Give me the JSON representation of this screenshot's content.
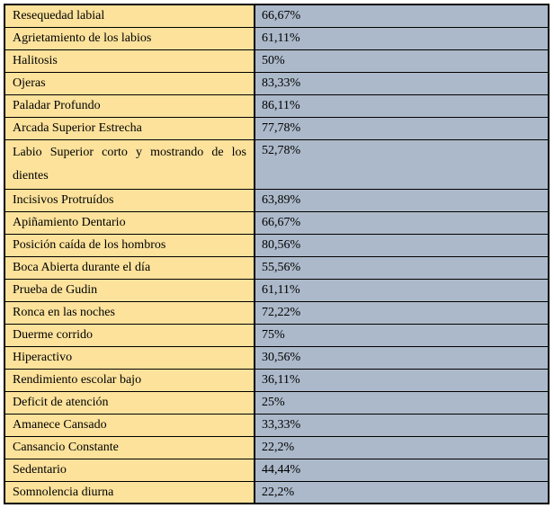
{
  "table": {
    "rows": [
      {
        "label": "Resequedad labial",
        "value": "66,67%"
      },
      {
        "label": "Agrietamiento de los labios",
        "value": "61,11%"
      },
      {
        "label": "Halitosis",
        "value": "50%"
      },
      {
        "label": "Ojeras",
        "value": "83,33%"
      },
      {
        "label": "Paladar Profundo",
        "value": "86,11%"
      },
      {
        "label": "Arcada Superior Estrecha",
        "value": "77,78%"
      },
      {
        "label": "Labio Superior corto y mostrando de los dientes",
        "value": "52,78%"
      },
      {
        "label": "Incisivos Protruídos",
        "value": "63,89%"
      },
      {
        "label": "Apiñamiento Dentario",
        "value": "66,67%"
      },
      {
        "label": "Posición caída de los hombros",
        "value": "80,56%"
      },
      {
        "label": "Boca Abierta durante el día",
        "value": "55,56%"
      },
      {
        "label": "Prueba de Gudin",
        "value": "61,11%"
      },
      {
        "label": "Ronca en las noches",
        "value": "72,22%"
      },
      {
        "label": "Duerme corrido",
        "value": "75%"
      },
      {
        "label": "Hiperactivo",
        "value": "30,56%"
      },
      {
        "label": "Rendimiento escolar bajo",
        "value": "36,11%"
      },
      {
        "label": "Deficit de atención",
        "value": "25%"
      },
      {
        "label": "Amanece Cansado",
        "value": "33,33%"
      },
      {
        "label": "Cansancio Constante",
        "value": "22,2%"
      },
      {
        "label": "Sedentario",
        "value": "44,44%"
      },
      {
        "label": "Somnolencia diurna",
        "value": "22,2%"
      }
    ]
  },
  "chart_data": {
    "type": "table",
    "categories": [
      "Resequedad labial",
      "Agrietamiento de los labios",
      "Halitosis",
      "Ojeras",
      "Paladar Profundo",
      "Arcada Superior Estrecha",
      "Labio Superior corto y mostrando de los dientes",
      "Incisivos Protruídos",
      "Apiñamiento Dentario",
      "Posición caída de los hombros",
      "Boca Abierta durante el día",
      "Prueba de Gudin",
      "Ronca en las noches",
      "Duerme corrido",
      "Hiperactivo",
      "Rendimiento escolar bajo",
      "Deficit de atención",
      "Amanece Cansado",
      "Cansancio Constante",
      "Sedentario",
      "Somnolencia diurna"
    ],
    "values": [
      66.67,
      61.11,
      50,
      83.33,
      86.11,
      77.78,
      52.78,
      63.89,
      66.67,
      80.56,
      55.56,
      61.11,
      72.22,
      75,
      30.56,
      36.11,
      25,
      33.33,
      22.2,
      44.44,
      22.2
    ],
    "value_format": "percent"
  },
  "colors": {
    "label_column_bg": "#FCE29B",
    "value_column_bg": "#ACB9CA",
    "border": "#000000",
    "text": "#000000",
    "page_bg": "#FFFFFF"
  }
}
